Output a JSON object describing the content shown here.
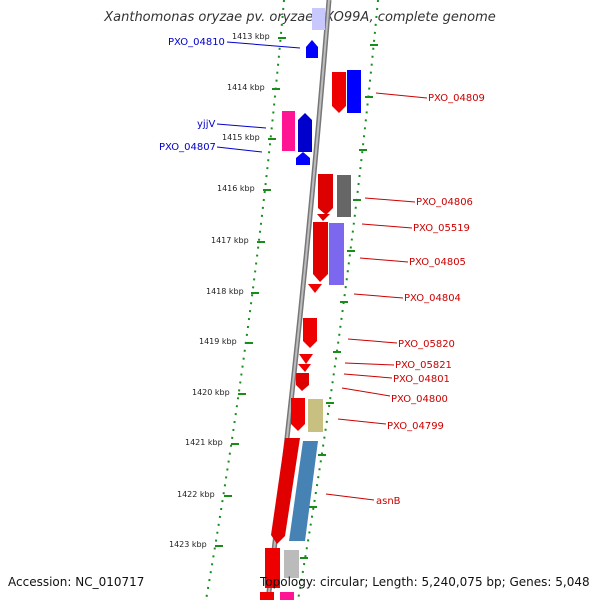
{
  "title": "Xanthomonas oryzae pv. oryzae PXO99A, complete genome",
  "footer": {
    "accession": "Accession: NC_010717",
    "summary": "Topology: circular; Length: 5,240,075 bp; Genes: 5,048"
  },
  "colors": {
    "forward_gene": "#ff0000",
    "reverse_gene": "#0000ff",
    "pink_gene": "#ff1493",
    "gray_gene": "#666666",
    "purple_gene": "#7b68ee",
    "olive_gene": "#c8c080",
    "steelblue_gene": "#4682b4",
    "lightgray_gene": "#bbbbbb",
    "tick_green": "#1a8c1a",
    "label_red": "#cc0000",
    "label_blue": "#0000cc",
    "backbone": "#888888"
  },
  "ticks": [
    "1413 kbp",
    "1414 kbp",
    "1415 kbp",
    "1416 kbp",
    "1417 kbp",
    "1418 kbp",
    "1419 kbp",
    "1420 kbp",
    "1421 kbp",
    "1422 kbp",
    "1423 kbp"
  ],
  "labels_left": [
    "PXO_04810",
    "yjjV",
    "PXO_04807"
  ],
  "labels_right": [
    "PXO_04809",
    "PXO_04806",
    "PXO_05519",
    "PXO_04805",
    "PXO_04804",
    "PXO_05820",
    "PXO_05821",
    "PXO_04801",
    "PXO_04800",
    "PXO_04799",
    "asnB"
  ]
}
